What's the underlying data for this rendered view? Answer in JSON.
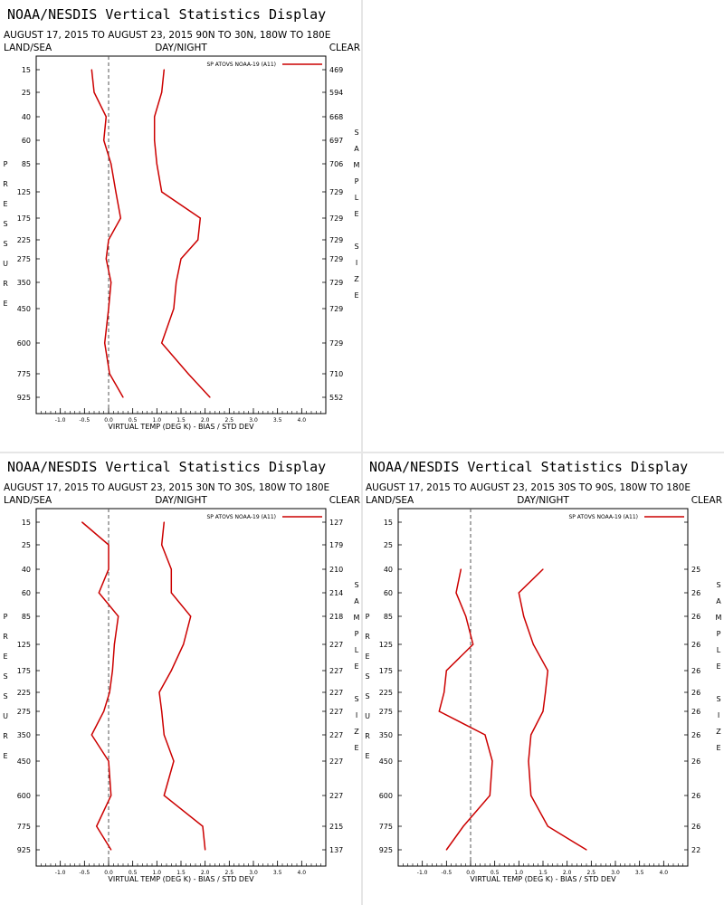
{
  "chart_data": [
    {
      "type": "line",
      "title": "NOAA/NESDIS Vertical Statistics Display",
      "subtitle": "AUGUST 17, 2015 TO AUGUST 23, 2015 90N TO 30N, 180W TO 180E",
      "left_label": "LAND/SEA",
      "center_label": "DAY/NIGHT",
      "right_label": "CLEAR",
      "xlabel": "VIRTUAL TEMP (DEG K) - BIAS / STD DEV",
      "ylabel": "PRESSURE",
      "right_axis_label": "SAMPLE SIZE",
      "legend": "SP ATOVS NOAA-19 (A11)",
      "xlim": [
        -1.5,
        4.5
      ],
      "x_ticks": [
        "-1.0",
        "-0.5",
        "0.0",
        "0.5",
        "1.0",
        "1.5",
        "2.0",
        "2.5",
        "3.0",
        "3.5",
        "4.0"
      ],
      "pressure_levels": [
        "15",
        "25",
        "40",
        "60",
        "85",
        "125",
        "175",
        "225",
        "275",
        "350",
        "450",
        "600",
        "775",
        "925"
      ],
      "sample_size": [
        "469",
        "594",
        "668",
        "697",
        "706",
        "729",
        "729",
        "729",
        "729",
        "729",
        "729",
        "729",
        "710",
        "552"
      ],
      "series": [
        {
          "values": [
            -0.35,
            -0.3,
            -0.05,
            -0.1,
            0.05,
            0.15,
            0.25,
            0.0,
            -0.05,
            0.05,
            0.0,
            -0.08,
            0.02,
            0.3
          ]
        },
        {
          "values": [
            1.15,
            1.1,
            0.95,
            0.95,
            1.0,
            1.1,
            1.9,
            1.85,
            1.5,
            1.4,
            1.35,
            1.1,
            1.65,
            2.1
          ]
        }
      ]
    },
    {
      "type": "line",
      "title": "NOAA/NESDIS Vertical Statistics Display",
      "subtitle": "AUGUST 17, 2015 TO AUGUST 23, 2015 30N TO 30S, 180W TO 180E",
      "left_label": "LAND/SEA",
      "center_label": "DAY/NIGHT",
      "right_label": "CLEAR",
      "xlabel": "VIRTUAL TEMP (DEG K) - BIAS / STD DEV",
      "ylabel": "PRESSURE",
      "right_axis_label": "SAMPLE SIZE",
      "legend": "SP ATOVS NOAA-19 (A11)",
      "xlim": [
        -1.5,
        4.5
      ],
      "x_ticks": [
        "-1.0",
        "-0.5",
        "0.0",
        "0.5",
        "1.0",
        "1.5",
        "2.0",
        "2.5",
        "3.0",
        "3.5",
        "4.0"
      ],
      "pressure_levels": [
        "15",
        "25",
        "40",
        "60",
        "85",
        "125",
        "175",
        "225",
        "275",
        "350",
        "450",
        "600",
        "775",
        "925"
      ],
      "sample_size": [
        "127",
        "179",
        "210",
        "214",
        "218",
        "227",
        "227",
        "227",
        "227",
        "227",
        "227",
        "227",
        "215",
        "137"
      ],
      "series": [
        {
          "values": [
            -0.55,
            0.0,
            0.0,
            -0.2,
            0.2,
            0.12,
            0.08,
            0.02,
            -0.1,
            -0.35,
            0.0,
            0.05,
            -0.25,
            0.05
          ]
        },
        {
          "values": [
            1.15,
            1.1,
            1.3,
            1.3,
            1.7,
            1.55,
            1.3,
            1.05,
            1.1,
            1.15,
            1.35,
            1.15,
            1.95,
            2.0
          ]
        }
      ]
    },
    {
      "type": "line",
      "title": "NOAA/NESDIS Vertical Statistics Display",
      "subtitle": "AUGUST 17, 2015 TO AUGUST 23, 2015 30S TO 90S, 180W TO 180E",
      "left_label": "LAND/SEA",
      "center_label": "DAY/NIGHT",
      "right_label": "CLEAR",
      "xlabel": "VIRTUAL TEMP (DEG K) - BIAS / STD DEV",
      "ylabel": "PRESSURE",
      "right_axis_label": "SAMPLE SIZE",
      "legend": "SP ATOVS NOAA-19 (A11)",
      "xlim": [
        -1.5,
        4.5
      ],
      "x_ticks": [
        "-1.0",
        "-0.5",
        "0.0",
        "0.5",
        "1.0",
        "1.5",
        "2.0",
        "2.5",
        "3.0",
        "3.5",
        "4.0"
      ],
      "pressure_levels": [
        "15",
        "25",
        "40",
        "60",
        "85",
        "125",
        "175",
        "225",
        "275",
        "350",
        "450",
        "600",
        "775",
        "925"
      ],
      "sample_size": [
        "",
        "",
        "25",
        "26",
        "26",
        "26",
        "26",
        "26",
        "26",
        "26",
        "26",
        "26",
        "26",
        "22"
      ],
      "series": [
        {
          "values": [
            null,
            null,
            -0.2,
            -0.3,
            -0.1,
            0.05,
            -0.5,
            -0.55,
            -0.65,
            0.3,
            0.45,
            0.4,
            -0.15,
            -0.5
          ]
        },
        {
          "values": [
            null,
            null,
            1.5,
            1.0,
            1.1,
            1.3,
            1.6,
            1.55,
            1.5,
            1.25,
            1.2,
            1.25,
            1.6,
            2.4
          ]
        }
      ]
    }
  ]
}
